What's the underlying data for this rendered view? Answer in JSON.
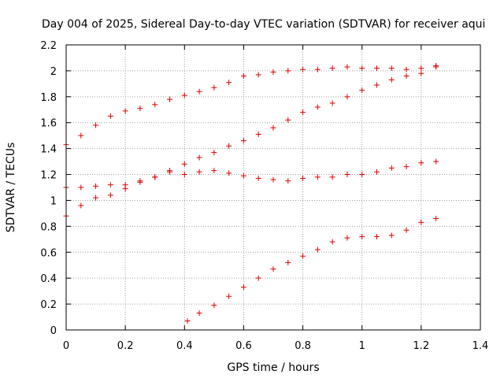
{
  "chart_data": {
    "type": "scatter",
    "title": "Day 004 of 2025, Sidereal Day-to-day VTEC variation (SDTVAR) for receiver aqui",
    "xlabel": "GPS time / hours",
    "ylabel": "SDTVAR / TECUs",
    "xlim": [
      0,
      1.4
    ],
    "ylim": [
      0,
      2.2
    ],
    "xticks": [
      "0",
      "0.2",
      "0.4",
      "0.6",
      "0.8",
      "1",
      "1.2",
      "1.4"
    ],
    "yticks": [
      "0",
      "0.2",
      "0.4",
      "0.6",
      "0.8",
      "1",
      "1.2",
      "1.4",
      "1.6",
      "1.8",
      "2",
      "2.2"
    ],
    "grid": true,
    "marker": "plus",
    "marker_color": "#e00000",
    "series": [
      {
        "name": "series-1",
        "x": [
          0.0,
          0.05,
          0.1,
          0.15,
          0.2,
          0.25,
          0.3,
          0.35,
          0.4,
          0.45,
          0.5,
          0.55,
          0.6,
          0.65,
          0.7,
          0.75,
          0.8,
          0.85,
          0.9,
          0.95,
          1.0,
          1.05,
          1.1,
          1.15,
          1.2,
          1.25
        ],
        "y": [
          1.43,
          1.5,
          1.58,
          1.65,
          1.69,
          1.71,
          1.74,
          1.78,
          1.81,
          1.84,
          1.87,
          1.91,
          1.96,
          1.97,
          1.99,
          2.0,
          2.01,
          2.01,
          2.02,
          2.03,
          2.02,
          2.02,
          2.02,
          2.01,
          2.02,
          2.04
        ]
      },
      {
        "name": "series-2",
        "x": [
          0.0,
          0.05,
          0.1,
          0.15,
          0.2,
          0.25,
          0.3,
          0.35,
          0.4,
          0.45,
          0.5,
          0.55,
          0.6,
          0.65,
          0.7,
          0.75,
          0.8,
          0.85,
          0.9,
          0.95,
          1.0,
          1.05,
          1.1,
          1.15,
          1.2,
          1.25
        ],
        "y": [
          0.88,
          0.96,
          1.02,
          1.04,
          1.09,
          1.14,
          1.18,
          1.22,
          1.28,
          1.33,
          1.37,
          1.42,
          1.46,
          1.51,
          1.56,
          1.62,
          1.68,
          1.72,
          1.75,
          1.8,
          1.85,
          1.89,
          1.93,
          1.96,
          1.98,
          2.03
        ]
      },
      {
        "name": "series-3",
        "x": [
          0.0,
          0.05,
          0.1,
          0.15,
          0.2,
          0.25,
          0.3,
          0.35,
          0.4,
          0.45,
          0.5,
          0.55,
          0.6,
          0.65,
          0.7,
          0.75,
          0.8,
          0.85,
          0.9,
          0.95,
          1.0,
          1.05,
          1.1,
          1.15,
          1.2,
          1.25
        ],
        "y": [
          1.1,
          1.1,
          1.11,
          1.12,
          1.12,
          1.15,
          1.18,
          1.23,
          1.2,
          1.22,
          1.23,
          1.21,
          1.19,
          1.17,
          1.16,
          1.15,
          1.17,
          1.18,
          1.18,
          1.2,
          1.2,
          1.22,
          1.25,
          1.26,
          1.29,
          1.3
        ]
      },
      {
        "name": "series-4",
        "x": [
          0.41,
          0.45,
          0.5,
          0.55,
          0.6,
          0.65,
          0.7,
          0.75,
          0.8,
          0.85,
          0.9,
          0.95,
          1.0,
          1.05,
          1.1,
          1.15,
          1.2,
          1.25
        ],
        "y": [
          0.07,
          0.13,
          0.19,
          0.26,
          0.33,
          0.4,
          0.47,
          0.52,
          0.57,
          0.62,
          0.68,
          0.71,
          0.72,
          0.72,
          0.73,
          0.77,
          0.83,
          0.86
        ]
      }
    ]
  }
}
